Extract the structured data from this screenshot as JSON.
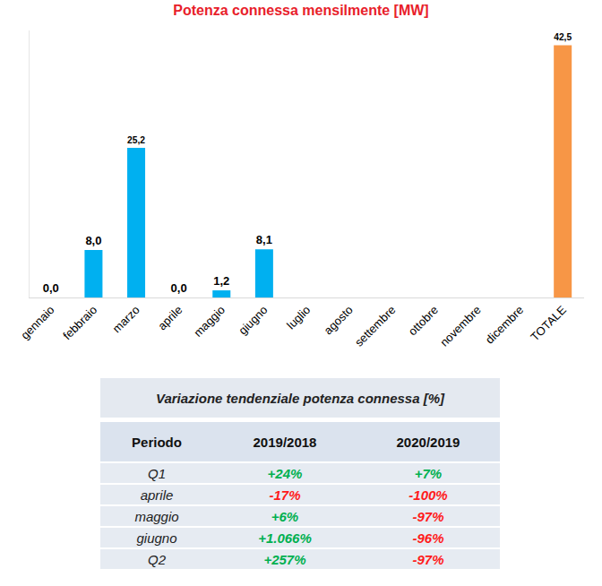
{
  "chart_data": {
    "type": "bar",
    "title": "Potenza connessa mensilmente [MW]",
    "categories": [
      "gennaio",
      "febbraio",
      "marzo",
      "aprile",
      "maggio",
      "giugno",
      "luglio",
      "agosto",
      "settembre",
      "ottobre",
      "novembre",
      "dicembre",
      "TOTALE"
    ],
    "values": [
      0.0,
      8.0,
      25.2,
      0.0,
      1.2,
      8.1,
      null,
      null,
      null,
      null,
      null,
      null,
      42.5
    ],
    "value_labels": [
      "0,0",
      "8,0",
      "25,2",
      "0,0",
      "1,2",
      "8,1",
      null,
      null,
      null,
      null,
      null,
      null,
      "42,5"
    ],
    "colors": [
      "#00b0f0",
      "#00b0f0",
      "#00b0f0",
      "#00b0f0",
      "#00b0f0",
      "#00b0f0",
      "#00b0f0",
      "#00b0f0",
      "#00b0f0",
      "#00b0f0",
      "#00b0f0",
      "#00b0f0",
      "#f79646"
    ],
    "ylim": [
      0,
      45
    ],
    "grid": false,
    "data_labels": true,
    "tick_labels": "x"
  },
  "table": {
    "title": "Variazione tendenziale potenza connessa [%]",
    "header": [
      "Periodo",
      "2019/2018",
      "2020/2019"
    ],
    "rows": [
      [
        "Q1",
        "+24%",
        "+7%"
      ],
      [
        "aprile",
        "-17%",
        "-100%"
      ],
      [
        "maggio",
        "+6%",
        "-97%"
      ],
      [
        "giugno",
        "+1.066%",
        "-96%"
      ],
      [
        "Q2",
        "+257%",
        "-97%"
      ]
    ]
  }
}
